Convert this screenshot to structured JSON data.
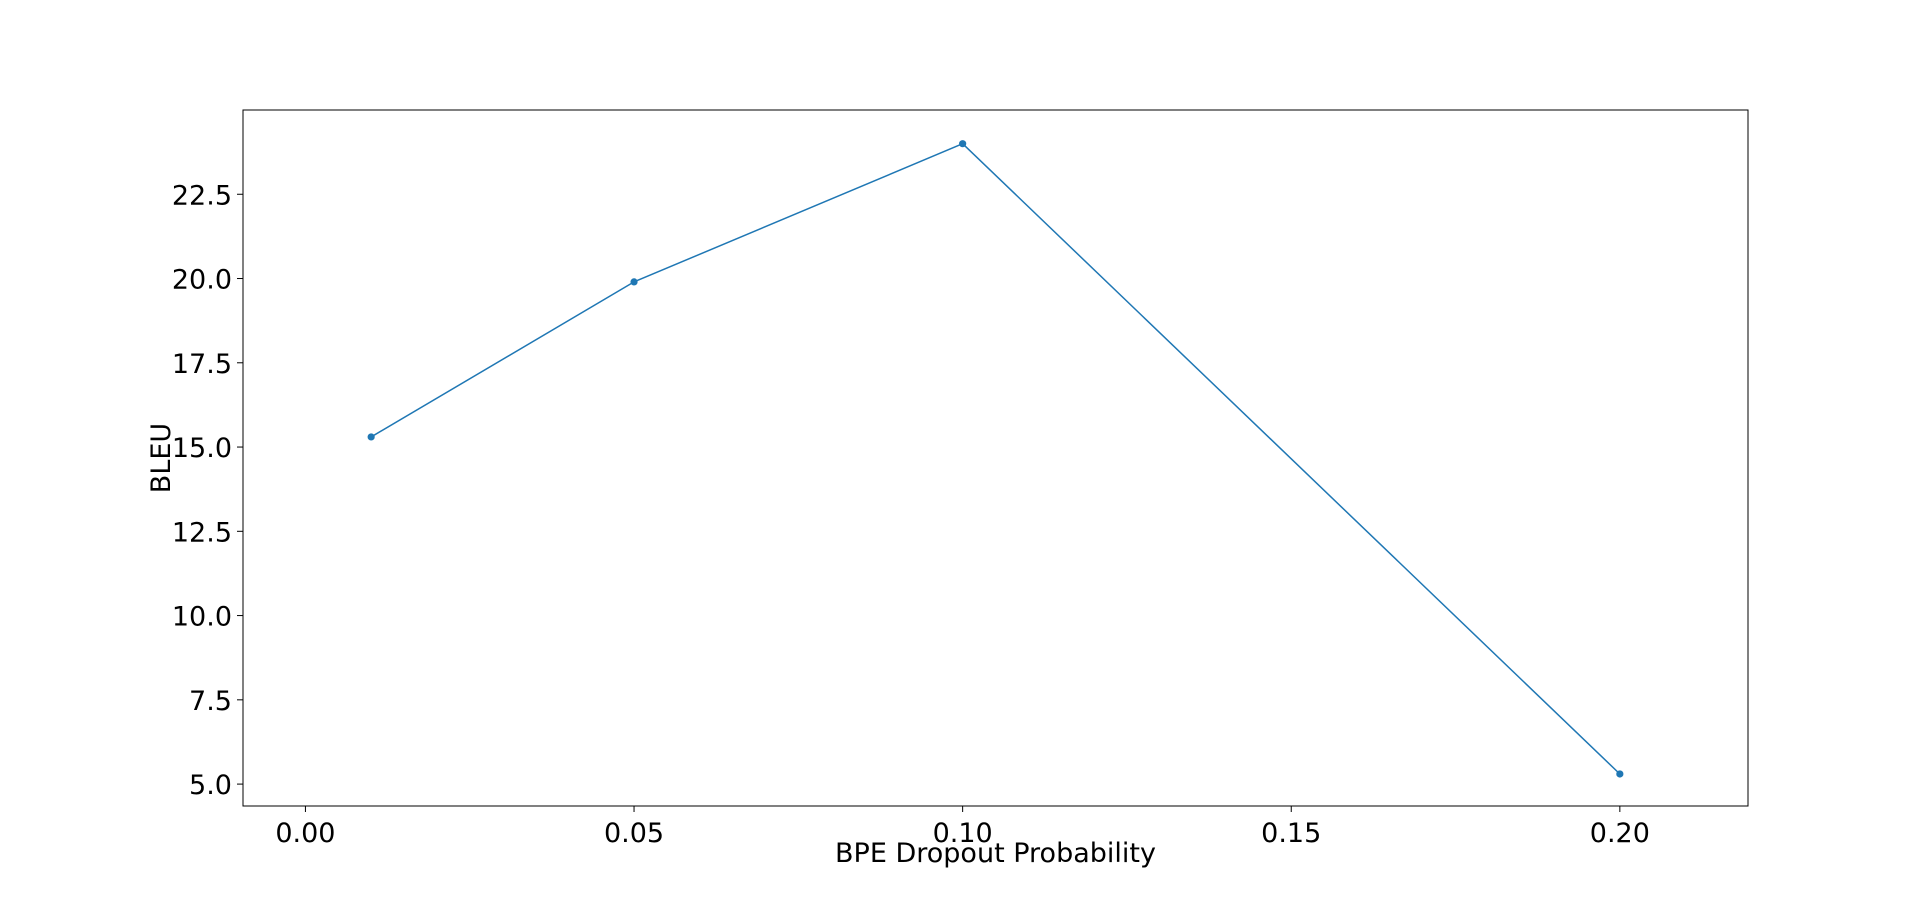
{
  "chart_data": {
    "type": "line",
    "title": "",
    "xlabel": "BPE Dropout Probability",
    "ylabel": "BLEU",
    "xlim": [
      -0.0095,
      0.2195
    ],
    "ylim": [
      4.35,
      25.0
    ],
    "x_ticks": [
      0.0,
      0.05,
      0.1,
      0.15,
      0.2
    ],
    "x_tick_labels": [
      "0.00",
      "0.05",
      "0.10",
      "0.15",
      "0.20"
    ],
    "y_ticks": [
      5.0,
      7.5,
      10.0,
      12.5,
      15.0,
      17.5,
      20.0,
      22.5
    ],
    "y_tick_labels": [
      "5.0",
      "7.5",
      "10.0",
      "12.5",
      "15.0",
      "17.5",
      "20.0",
      "22.5"
    ],
    "grid": false,
    "series": [
      {
        "color": "#1f77b4",
        "marker": "circle",
        "x": [
          0.01,
          0.05,
          0.1,
          0.2
        ],
        "y": [
          15.3,
          19.9,
          24.0,
          5.3
        ]
      }
    ]
  }
}
